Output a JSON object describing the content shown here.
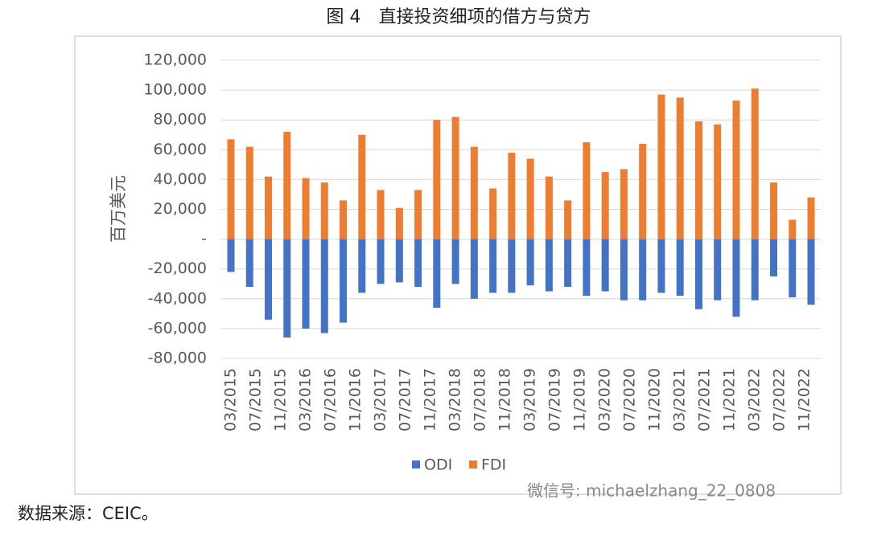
{
  "chart_data": {
    "type": "bar",
    "title": "图 4　直接投资细项的借方与贷方",
    "ylabel": "百万美元",
    "source": "数据来源：CEIC。",
    "watermark": "微信号: michaelzhang_22_0808",
    "categories": [
      null,
      null,
      null,
      null,
      null,
      null,
      null,
      null,
      null,
      null,
      null,
      null,
      null,
      null,
      null,
      null,
      null,
      null,
      null,
      null,
      null,
      null,
      null,
      null,
      null,
      null,
      null,
      null,
      null,
      null,
      null,
      null
    ],
    "xtick_labels": [
      "03/2015",
      "07/2015",
      "11/2015",
      "03/2016",
      "07/2016",
      "11/2016",
      "03/2017",
      "07/2017",
      "11/2017",
      "03/2018",
      "07/2018",
      "11/2018",
      "03/2019",
      "07/2019",
      "11/2019",
      "03/2020",
      "07/2020",
      "11/2020",
      "03/2021",
      "07/2021",
      "11/2021",
      "03/2022",
      "07/2022",
      "11/2022"
    ],
    "series": [
      {
        "name": "ODI",
        "color": "#4472c4",
        "values": [
          -22000,
          -32000,
          -54000,
          -66000,
          -60000,
          -63000,
          -56000,
          -36000,
          -30000,
          -29000,
          -32000,
          -46000,
          -30000,
          -40000,
          -36000,
          -36000,
          -31000,
          -35000,
          -32000,
          -38000,
          -35000,
          -41000,
          -41000,
          -36000,
          -38000,
          -47000,
          -41000,
          -52000,
          -41000,
          -25000,
          -39000,
          -44000
        ]
      },
      {
        "name": "FDI",
        "color": "#ed7d31",
        "values": [
          67000,
          62000,
          42000,
          72000,
          41000,
          38000,
          26000,
          70000,
          33000,
          21000,
          33000,
          80000,
          82000,
          62000,
          34000,
          58000,
          54000,
          42000,
          26000,
          65000,
          45000,
          47000,
          64000,
          97000,
          95000,
          79000,
          77000,
          93000,
          101000,
          38000,
          13000,
          28000
        ]
      }
    ],
    "ylim": [
      -80000,
      120000
    ],
    "yticks": [
      {
        "value": -80000,
        "label": "-80,000"
      },
      {
        "value": -60000,
        "label": "-60,000"
      },
      {
        "value": -40000,
        "label": "-40,000"
      },
      {
        "value": -20000,
        "label": "-20,000"
      },
      {
        "value": 0,
        "label": "-"
      },
      {
        "value": 20000,
        "label": "20,000"
      },
      {
        "value": 40000,
        "label": "40,000"
      },
      {
        "value": 60000,
        "label": "60,000"
      },
      {
        "value": 80000,
        "label": "80,000"
      },
      {
        "value": 100000,
        "label": "100,000"
      },
      {
        "value": 120000,
        "label": "120,000"
      }
    ],
    "grid": true,
    "legend": "bottom"
  }
}
